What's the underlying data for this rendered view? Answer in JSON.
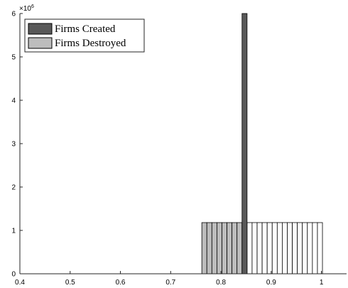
{
  "chart_data": {
    "type": "bar",
    "title": "",
    "xlabel": "",
    "ylabel": "",
    "y_multiplier_label": "×10",
    "y_multiplier_exponent": "6",
    "xlim": [
      0.4,
      1.05
    ],
    "ylim": [
      0,
      6000000
    ],
    "x_ticks": [
      "0.4",
      "0.5",
      "0.6",
      "0.7",
      "0.8",
      "0.9",
      "1"
    ],
    "y_ticks": [
      "0",
      "1",
      "2",
      "3",
      "4",
      "5",
      "6"
    ],
    "legend_position": "top-left",
    "series": [
      {
        "name": "Firms Created",
        "color": "#595959",
        "bins": [
          {
            "x0": 0.842,
            "x1": 0.852,
            "value": 6000000
          }
        ]
      },
      {
        "name": "Firms Destroyed",
        "color": "#bdbdbd",
        "bins": [
          {
            "x0": 0.762,
            "x1": 0.772,
            "value": 1180000
          },
          {
            "x0": 0.772,
            "x1": 0.782,
            "value": 1180000
          },
          {
            "x0": 0.782,
            "x1": 0.792,
            "value": 1180000
          },
          {
            "x0": 0.792,
            "x1": 0.802,
            "value": 1180000
          },
          {
            "x0": 0.802,
            "x1": 0.812,
            "value": 1180000
          },
          {
            "x0": 0.812,
            "x1": 0.822,
            "value": 1180000
          },
          {
            "x0": 0.822,
            "x1": 0.832,
            "value": 1180000
          },
          {
            "x0": 0.832,
            "x1": 0.842,
            "value": 1180000
          }
        ]
      },
      {
        "name": "",
        "color": "#ffffff",
        "bins": [
          {
            "x0": 0.842,
            "x1": 0.852,
            "value": 1180000
          },
          {
            "x0": 0.852,
            "x1": 0.862,
            "value": 1180000
          },
          {
            "x0": 0.862,
            "x1": 0.872,
            "value": 1180000
          },
          {
            "x0": 0.872,
            "x1": 0.882,
            "value": 1180000
          },
          {
            "x0": 0.882,
            "x1": 0.892,
            "value": 1180000
          },
          {
            "x0": 0.892,
            "x1": 0.902,
            "value": 1180000
          },
          {
            "x0": 0.902,
            "x1": 0.912,
            "value": 1180000
          },
          {
            "x0": 0.912,
            "x1": 0.922,
            "value": 1180000
          },
          {
            "x0": 0.922,
            "x1": 0.932,
            "value": 1180000
          },
          {
            "x0": 0.932,
            "x1": 0.942,
            "value": 1180000
          },
          {
            "x0": 0.942,
            "x1": 0.952,
            "value": 1180000
          },
          {
            "x0": 0.952,
            "x1": 0.962,
            "value": 1180000
          },
          {
            "x0": 0.962,
            "x1": 0.972,
            "value": 1180000
          },
          {
            "x0": 0.972,
            "x1": 0.982,
            "value": 1180000
          },
          {
            "x0": 0.982,
            "x1": 0.992,
            "value": 1180000
          },
          {
            "x0": 0.992,
            "x1": 1.002,
            "value": 1180000
          }
        ]
      }
    ],
    "legend": [
      {
        "label": "Firms Created",
        "color": "#595959"
      },
      {
        "label": "Firms Destroyed",
        "color": "#bdbdbd"
      }
    ]
  }
}
